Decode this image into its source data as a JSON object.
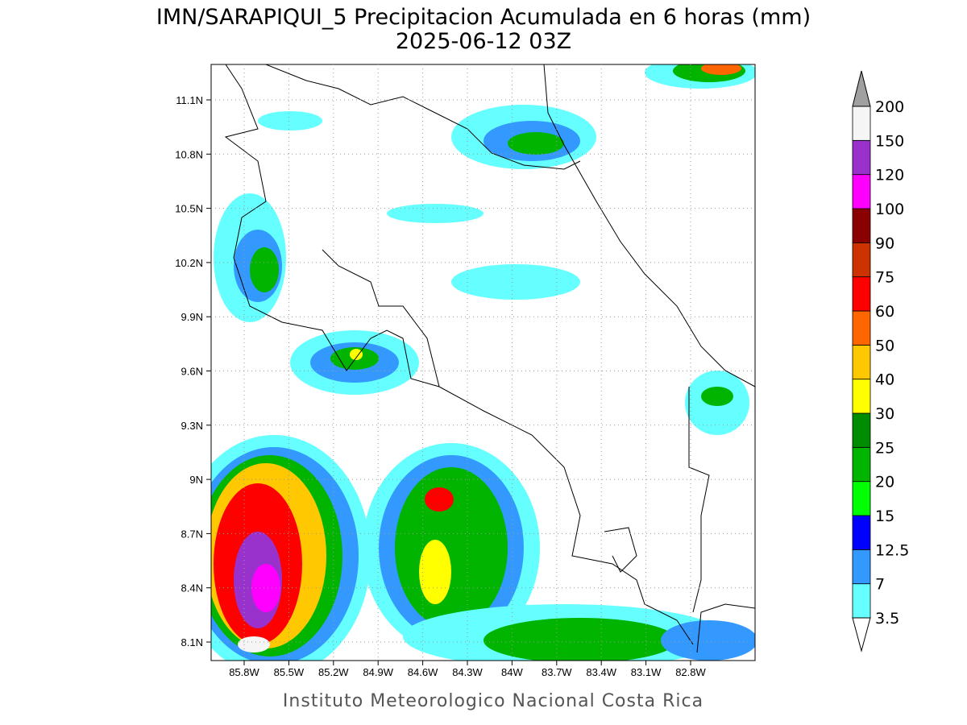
{
  "title": "IMN/SARAPIQUI_5 Precipitacion Acumulada en 6 horas (mm)",
  "subtitle": "2025-06-12 03Z",
  "footer": "Instituto Meteorologico Nacional Costa Rica",
  "map": {
    "lon_labels": [
      "85.8W",
      "85.5W",
      "85.2W",
      "84.9W",
      "84.6W",
      "84.3W",
      "84W",
      "83.7W",
      "83.4W",
      "83.1W",
      "82.8W"
    ],
    "lat_labels": [
      "11.1N",
      "10.8N",
      "10.5N",
      "10.2N",
      "9.9N",
      "9.6N",
      "9.3N",
      "9N",
      "8.7N",
      "8.4N",
      "8.1N"
    ]
  },
  "colorbar": {
    "levels": [
      3.5,
      7,
      12.5,
      15,
      20,
      25,
      30,
      40,
      50,
      60,
      75,
      90,
      100,
      120,
      150,
      200
    ],
    "colors": [
      "#66ffff",
      "#3399ff",
      "#0000ff",
      "#00ff00",
      "#00b400",
      "#008c00",
      "#ffff00",
      "#ffc800",
      "#ff6600",
      "#ff0000",
      "#cc3300",
      "#8b0000",
      "#ff00ff",
      "#9932cc",
      "#f5f5f5"
    ],
    "under_color": "#ffffff",
    "over_color": "#a0a0a0"
  }
}
